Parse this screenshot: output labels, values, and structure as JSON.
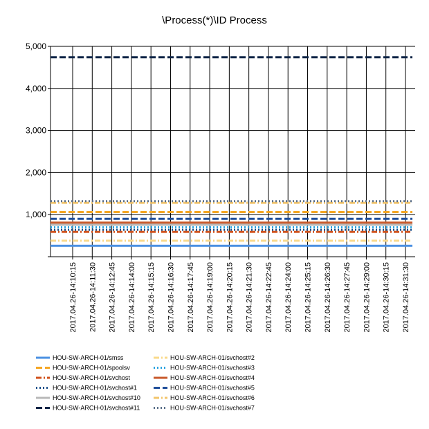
{
  "chart_data": {
    "type": "line",
    "title": "\\Process(*)\\ID Process",
    "xlabel": "",
    "ylabel": "",
    "ylim": [
      0,
      5000
    ],
    "y_ticks": [
      0,
      1000,
      2000,
      3000,
      4000,
      5000
    ],
    "y_tick_labels": [
      "",
      "1,000",
      "2,000",
      "3,000",
      "4,000",
      "5,000"
    ],
    "grid": true,
    "legend_position": "bottom",
    "categories": [
      "2017.04.26-14:10:15",
      "2017.04.26-14:11:30",
      "2017.04.26-14:12:45",
      "2017.04.26-14:14:00",
      "2017.04.26-14:15:15",
      "2017.04.26-14:16:30",
      "2017.04.26-14:17:45",
      "2017.04.26-14:19:00",
      "2017.04.26-14:20:15",
      "2017.04.26-14:21:30",
      "2017.04.26-14:22:45",
      "2017.04.26-14:24:00",
      "2017.04.26-14:25:15",
      "2017.04.26-14:26:30",
      "2017.04.26-14:27:45",
      "2017.04.26-14:29:00",
      "2017.04.26-14:30:15",
      "2017.04.26-14:31:30"
    ],
    "series": [
      {
        "name": "HOU-SW-ARCH-01/smss",
        "color": "#4a90e2",
        "dash": "solid",
        "value": 260
      },
      {
        "name": "HOU-SW-ARCH-01/spoolsv",
        "color": "#f5a623",
        "dash": "dashed",
        "value": 1060
      },
      {
        "name": "HOU-SW-ARCH-01/svchost",
        "color": "#d0501a",
        "dash": "dashdot",
        "value": 590
      },
      {
        "name": "HOU-SW-ARCH-01/svchost#1",
        "color": "#1a4f8a",
        "dash": "dotted",
        "value": 640
      },
      {
        "name": "HOU-SW-ARCH-01/svchost#10",
        "color": "#b8b8b8",
        "dash": "solid",
        "value": 760
      },
      {
        "name": "HOU-SW-ARCH-01/svchost#11",
        "color": "#0d2446",
        "dash": "dashed",
        "value": 4740
      },
      {
        "name": "HOU-SW-ARCH-01/svchost#2",
        "color": "#f9d98a",
        "dash": "dashdot",
        "value": 380
      },
      {
        "name": "HOU-SW-ARCH-01/svchost#3",
        "color": "#29a3e0",
        "dash": "dotted",
        "value": 700
      },
      {
        "name": "HOU-SW-ARCH-01/svchost#4",
        "color": "#c8582a",
        "dash": "solid",
        "value": 810
      },
      {
        "name": "HOU-SW-ARCH-01/svchost#5",
        "color": "#1f4e9a",
        "dash": "dashed",
        "value": 900
      },
      {
        "name": "HOU-SW-ARCH-01/svchost#6",
        "color": "#f2c46a",
        "dash": "dashdot",
        "value": 1280
      },
      {
        "name": "HOU-SW-ARCH-01/svchost#7",
        "color": "#5a6f88",
        "dash": "dotted",
        "value": 1320
      }
    ]
  }
}
